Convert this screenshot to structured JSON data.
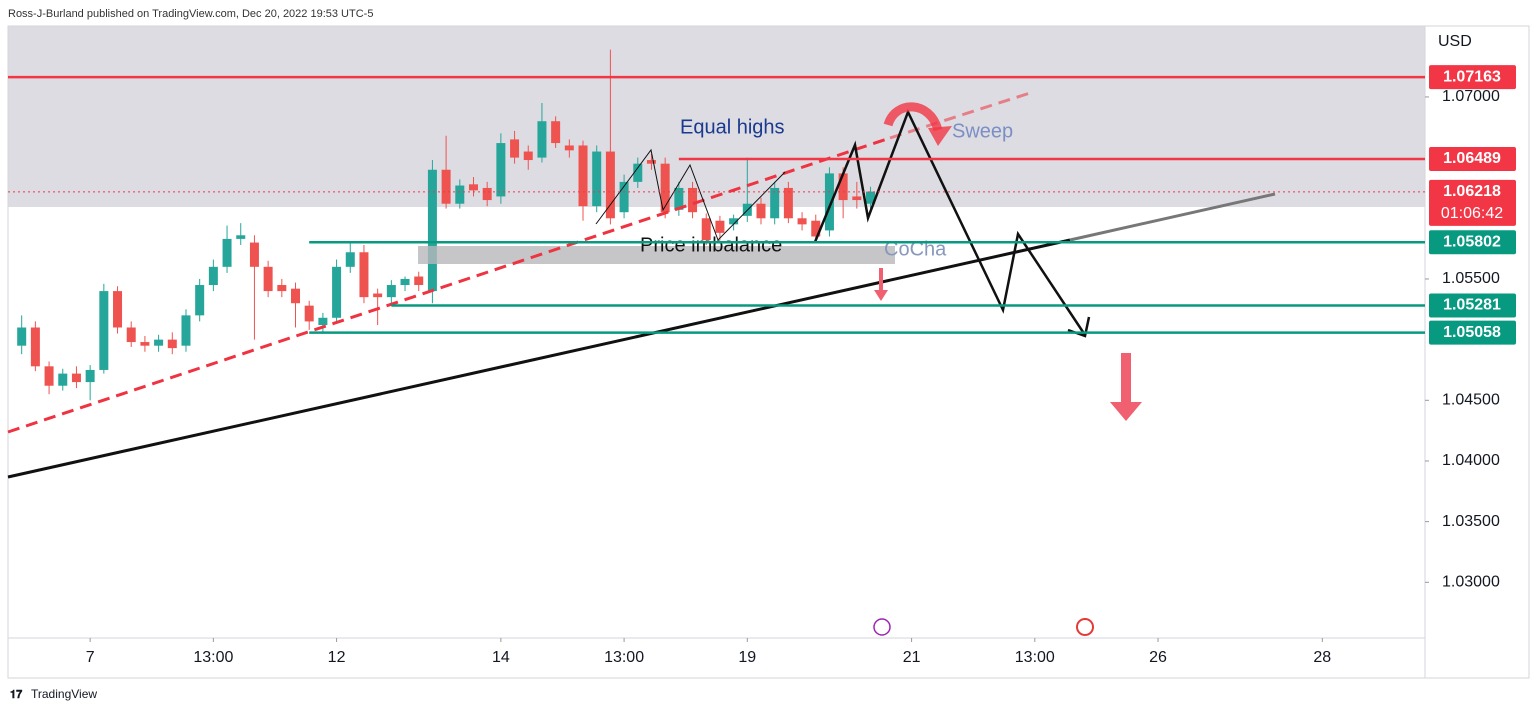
{
  "header": "Ross-J-Burland published on TradingView.com, Dec 20, 2022 19:53 UTC-5",
  "footer": "TradingView",
  "chart_data": {
    "type": "candlestick",
    "currency": "USD",
    "up_color": "#26a69a",
    "down_color": "#ef5350",
    "x": [
      -5,
      -4,
      -3,
      -2,
      -1,
      0,
      1,
      2,
      3,
      4,
      5,
      6,
      7,
      8,
      9,
      10,
      11,
      12,
      13,
      14,
      15,
      16,
      17,
      18,
      19,
      20,
      21,
      22,
      23,
      24,
      25,
      26,
      27,
      28,
      29,
      30,
      31,
      32,
      33,
      34,
      35,
      36,
      37,
      38,
      39,
      40,
      41,
      42,
      43,
      44,
      45,
      46,
      47,
      48,
      49,
      50,
      51,
      52,
      53,
      54,
      55,
      56,
      57
    ],
    "open": [
      1.0495,
      1.051,
      1.0478,
      1.0462,
      1.0472,
      1.0465,
      1.0475,
      1.054,
      1.051,
      1.0498,
      1.0495,
      1.05,
      1.0495,
      1.052,
      1.0545,
      1.056,
      1.0583,
      1.058,
      1.056,
      1.0545,
      1.0542,
      1.0528,
      1.0512,
      1.0518,
      1.056,
      1.0572,
      1.0538,
      1.0535,
      1.0545,
      1.0552,
      1.054,
      1.064,
      1.0612,
      1.0628,
      1.0625,
      1.0618,
      1.0665,
      1.0655,
      1.065,
      1.068,
      1.066,
      1.066,
      1.061,
      1.0655,
      1.0605,
      1.063,
      1.0648,
      1.0645,
      1.0607,
      1.0625,
      1.06,
      1.0598,
      1.0595,
      1.0602,
      1.0612,
      1.06,
      1.0625,
      1.06,
      1.0598,
      1.059,
      1.0637,
      1.0618,
      1.0612
    ],
    "high": [
      1.052,
      1.0515,
      1.0482,
      1.0476,
      1.0478,
      1.0479,
      1.0546,
      1.0544,
      1.0515,
      1.0503,
      1.0504,
      1.0506,
      1.0525,
      1.055,
      1.0566,
      1.0594,
      1.0596,
      1.0586,
      1.0565,
      1.055,
      1.0547,
      1.0532,
      1.0522,
      1.0566,
      1.058,
      1.0578,
      1.0542,
      1.0549,
      1.0552,
      1.0556,
      1.0648,
      1.0668,
      1.0632,
      1.0634,
      1.063,
      1.067,
      1.0672,
      1.066,
      1.0695,
      1.0684,
      1.0665,
      1.0664,
      1.066,
      1.0739,
      1.0636,
      1.065,
      1.0653,
      1.065,
      1.063,
      1.063,
      1.0604,
      1.0602,
      1.0603,
      1.065,
      1.0617,
      1.063,
      1.063,
      1.0605,
      1.0603,
      1.0642,
      1.0642,
      1.063,
      1.0626
    ],
    "low": [
      1.0488,
      1.0474,
      1.0455,
      1.0458,
      1.046,
      1.045,
      1.0472,
      1.0505,
      1.0494,
      1.049,
      1.049,
      1.0488,
      1.049,
      1.0515,
      1.054,
      1.0555,
      1.0578,
      1.05,
      1.0535,
      1.0535,
      1.051,
      1.0508,
      1.0506,
      1.0514,
      1.0555,
      1.053,
      1.0512,
      1.053,
      1.054,
      1.054,
      1.053,
      1.0608,
      1.0608,
      1.0618,
      1.061,
      1.0612,
      1.0645,
      1.064,
      1.0646,
      1.0658,
      1.065,
      1.0598,
      1.0605,
      1.0595,
      1.06,
      1.0625,
      1.064,
      1.06,
      1.0602,
      1.06,
      1.0578,
      1.0582,
      1.059,
      1.0597,
      1.0595,
      1.0595,
      1.0596,
      1.059,
      1.058,
      1.0585,
      1.06,
      1.0608,
      1.0606
    ],
    "close": [
      1.051,
      1.0478,
      1.0462,
      1.0472,
      1.0465,
      1.0475,
      1.054,
      1.051,
      1.0498,
      1.0495,
      1.05,
      1.0493,
      1.052,
      1.0545,
      1.056,
      1.0583,
      1.0586,
      1.056,
      1.054,
      1.054,
      1.053,
      1.0515,
      1.0518,
      1.056,
      1.0572,
      1.0535,
      1.0535,
      1.0545,
      1.055,
      1.0545,
      1.064,
      1.0612,
      1.0627,
      1.0623,
      1.0615,
      1.0662,
      1.065,
      1.0648,
      1.068,
      1.0662,
      1.0656,
      1.061,
      1.0655,
      1.06,
      1.063,
      1.0645,
      1.0645,
      1.0605,
      1.0625,
      1.0605,
      1.0582,
      1.0588,
      1.06,
      1.0612,
      1.06,
      1.0625,
      1.06,
      1.0595,
      1.0585,
      1.0637,
      1.0615,
      1.0615,
      1.0622
    ],
    "xlim": [
      -6,
      97.5
    ],
    "xticks": [
      {
        "value": 0,
        "label": "7"
      },
      {
        "value": 9,
        "label": "13:00"
      },
      {
        "value": 18,
        "label": "12"
      },
      {
        "value": 30,
        "label": "14"
      },
      {
        "value": 39,
        "label": "13:00"
      },
      {
        "value": 48,
        "label": "19"
      },
      {
        "value": 60,
        "label": "21"
      },
      {
        "value": 69,
        "label": "13:00"
      },
      {
        "value": 78,
        "label": "26"
      },
      {
        "value": 90,
        "label": "28"
      }
    ],
    "ylim": [
      1.02541,
      1.07733
    ],
    "yticks": [
      {
        "value": 1.07,
        "label": "1.07000"
      },
      {
        "value": 1.055,
        "label": "1.05500"
      },
      {
        "value": 1.045,
        "label": "1.04500"
      },
      {
        "value": 1.04,
        "label": "1.04000"
      },
      {
        "value": 1.035,
        "label": "1.03500"
      },
      {
        "value": 1.03,
        "label": "1.03000"
      }
    ],
    "levels": [
      {
        "value": 1.07163,
        "color": "#f23645",
        "start": -6
      },
      {
        "value": 1.06489,
        "color": "#f23645",
        "start": 43
      },
      {
        "value": 1.06218,
        "color": "#f23645",
        "start": -6,
        "timer": "01:06:42"
      },
      {
        "value": 1.05802,
        "color": "#089981",
        "start": 16
      },
      {
        "value": 1.05281,
        "color": "#089981",
        "start": 22
      },
      {
        "value": 1.05058,
        "color": "#089981",
        "start": 16
      }
    ],
    "annotations": [
      "Equal highs",
      "Sweep",
      "Price imbalance",
      "CoCha"
    ]
  }
}
